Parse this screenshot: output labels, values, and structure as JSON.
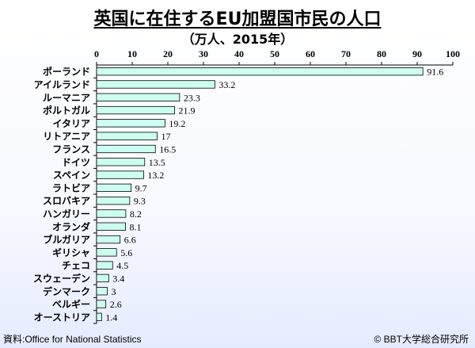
{
  "title": "英国に在住するEU加盟国市民の人口",
  "subtitle": "（万人、2015年）",
  "footer": {
    "source": "資料:Office for National Statistics",
    "copyright": "© BBT大学総合研究所"
  },
  "colors": {
    "bar_fill": "#ccfff0",
    "bar_stroke": "#000000"
  },
  "chart_data": {
    "type": "bar",
    "orientation": "horizontal",
    "title": "英国に在住するEU加盟国市民の人口",
    "subtitle": "（万人、2015年）",
    "categories": [
      "ポーランド",
      "アイルランド",
      "ルーマニア",
      "ポルトガル",
      "イタリア",
      "リトアニア",
      "フランス",
      "ドイツ",
      "スペイン",
      "ラトビア",
      "スロバキア",
      "ハンガリー",
      "オランダ",
      "ブルガリア",
      "ギリシャ",
      "チェコ",
      "スウェーデン",
      "デンマーク",
      "ベルギー",
      "オーストリア"
    ],
    "values": [
      91.6,
      33.2,
      23.3,
      21.9,
      19.2,
      17,
      16.5,
      13.5,
      13.2,
      9.7,
      9.3,
      8.2,
      8.1,
      6.6,
      5.6,
      4.5,
      3.4,
      3,
      2.6,
      1.4
    ],
    "value_labels": [
      "91.6",
      "33.2",
      "23.3",
      "21.9",
      "19.2",
      "17",
      "16.5",
      "13.5",
      "13.2",
      "9.7",
      "9.3",
      "8.2",
      "8.1",
      "6.6",
      "5.6",
      "4.5",
      "3.4",
      "3",
      "2.6",
      "1.4"
    ],
    "xlim": [
      0,
      100
    ],
    "xticks": [
      0,
      10,
      20,
      30,
      40,
      50,
      60,
      70,
      80,
      90,
      100
    ],
    "axis_position": "top",
    "grid": false,
    "legend": "none"
  }
}
